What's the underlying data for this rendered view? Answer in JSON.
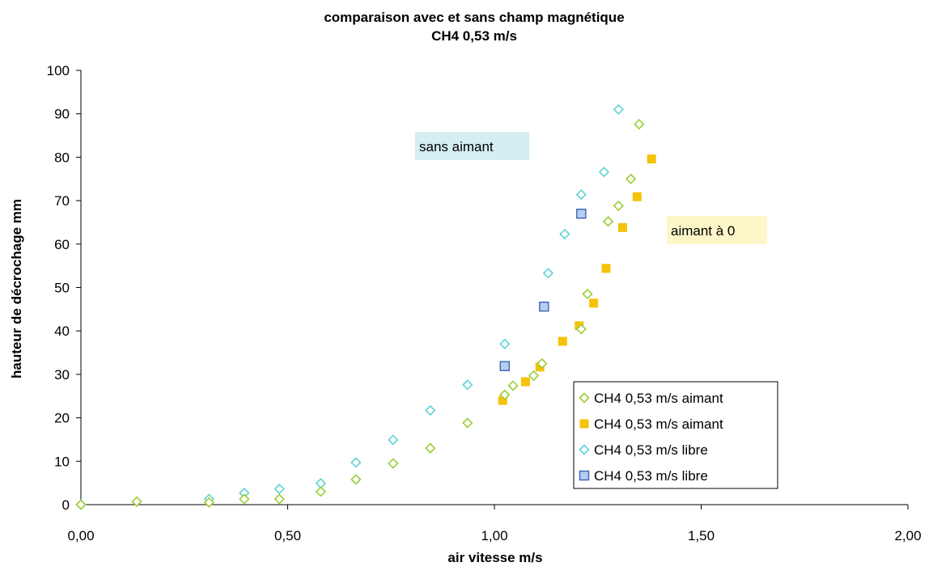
{
  "chart_data": {
    "type": "scatter",
    "title": "comparaison avec et sans champ magnétique",
    "subtitle": "CH4 0,53 m/s",
    "xlabel": "air vitesse m/s",
    "ylabel": "hauteur de décrochage mm",
    "xlim": [
      0,
      2
    ],
    "ylim": [
      0,
      100
    ],
    "x_ticks": [
      0,
      0.5,
      1.0,
      1.5,
      2.0
    ],
    "x_tick_labels": [
      "0,00",
      "0,50",
      "1,00",
      "1,50",
      "2,00"
    ],
    "y_ticks": [
      0,
      10,
      20,
      30,
      40,
      50,
      60,
      70,
      80,
      90,
      100
    ],
    "y_tick_labels": [
      "0",
      "10",
      "20",
      "30",
      "40",
      "50",
      "60",
      "70",
      "80",
      "90",
      "100"
    ],
    "grid": false,
    "legend_position": "bottom-right",
    "series": [
      {
        "name": "CH4 0,53 m/s aimant",
        "marker": "diamond",
        "color": "#9acd32",
        "points": [
          [
            0,
            0
          ],
          [
            0.135,
            0.7
          ],
          [
            0.31,
            0.5
          ],
          [
            0.395,
            1.3
          ],
          [
            0.48,
            1.3
          ],
          [
            0.58,
            3
          ],
          [
            0.665,
            5.8
          ],
          [
            0.755,
            9.5
          ],
          [
            0.845,
            13
          ],
          [
            0.935,
            18.8
          ],
          [
            1.025,
            25.3
          ],
          [
            1.045,
            27.4
          ],
          [
            1.095,
            29.7
          ],
          [
            1.115,
            32.5
          ],
          [
            1.21,
            40.4
          ],
          [
            1.225,
            48.5
          ],
          [
            1.275,
            65.2
          ],
          [
            1.3,
            68.8
          ],
          [
            1.33,
            75
          ],
          [
            1.35,
            87.6
          ]
        ]
      },
      {
        "name": "CH4 0,53 m/s aimant",
        "marker": "square",
        "color": "#f5c20a",
        "points": [
          [
            1.02,
            24
          ],
          [
            1.075,
            28.3
          ],
          [
            1.11,
            31.7
          ],
          [
            1.165,
            37.6
          ],
          [
            1.205,
            41.2
          ],
          [
            1.24,
            46.4
          ],
          [
            1.27,
            54.4
          ],
          [
            1.31,
            63.8
          ],
          [
            1.345,
            70.9
          ],
          [
            1.38,
            79.6
          ]
        ]
      },
      {
        "name": "CH4 0,53 m/s libre",
        "marker": "diamond",
        "color": "#5fd3d3",
        "points": [
          [
            0,
            0
          ],
          [
            0.31,
            1.3
          ],
          [
            0.395,
            2.7
          ],
          [
            0.48,
            3.6
          ],
          [
            0.58,
            4.9
          ],
          [
            0.665,
            9.7
          ],
          [
            0.755,
            14.9
          ],
          [
            0.845,
            21.7
          ],
          [
            0.935,
            27.6
          ],
          [
            1.025,
            37
          ],
          [
            1.13,
            53.3
          ],
          [
            1.17,
            62.3
          ],
          [
            1.21,
            71.4
          ],
          [
            1.265,
            76.6
          ],
          [
            1.3,
            91
          ]
        ]
      },
      {
        "name": "CH4 0,53 m/s libre",
        "marker": "square",
        "color": "#b7cdf0",
        "stroke": "#3a64b5",
        "points": [
          [
            1.025,
            31.9
          ],
          [
            1.12,
            45.6
          ],
          [
            1.21,
            67
          ]
        ]
      }
    ],
    "annotations": [
      {
        "text": "sans aimant",
        "background": "#d4eef2"
      },
      {
        "text": "aimant à 0",
        "background": "#fdf6c8"
      }
    ]
  }
}
